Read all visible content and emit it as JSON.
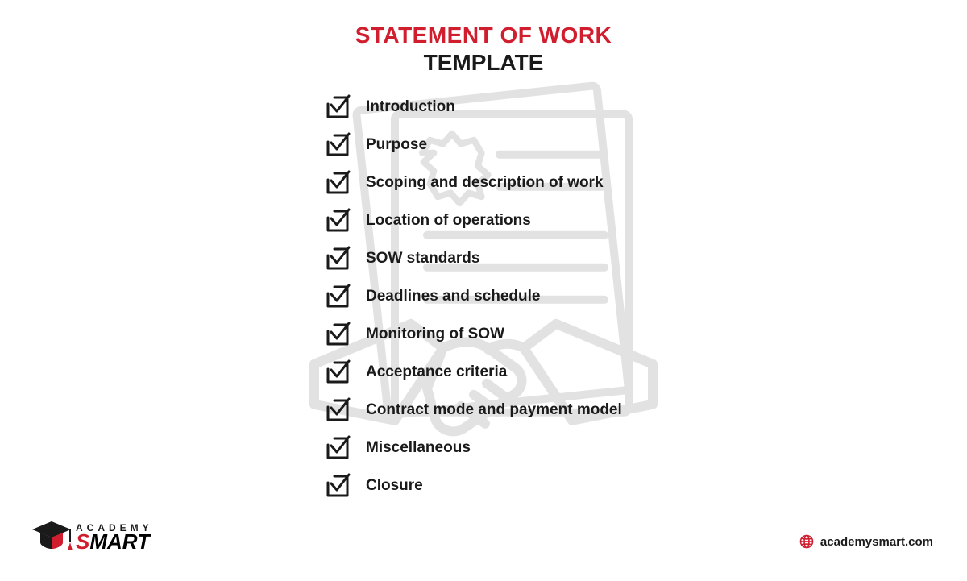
{
  "colors": {
    "accent": "#d01e2f",
    "text": "#1a1a1a",
    "bg_art": "#e2e2e2",
    "background": "#ffffff"
  },
  "title": {
    "line1": "STATEMENT OF WORK",
    "line2": "TEMPLATE",
    "line1_color": "#d01e2f",
    "line1_fontsize": 28,
    "line2_fontsize": 28
  },
  "checklist": {
    "icon_stroke": "#1a1a1a",
    "label_fontsize": 19,
    "items": [
      {
        "label": "Introduction"
      },
      {
        "label": "Purpose"
      },
      {
        "label": "Scoping and description of work"
      },
      {
        "label": "Location of operations"
      },
      {
        "label": "SOW standards"
      },
      {
        "label": "Deadlines and schedule"
      },
      {
        "label": "Monitoring of SOW"
      },
      {
        "label": "Acceptance criteria"
      },
      {
        "label": "Contract mode and payment model"
      },
      {
        "label": "Miscellaneous"
      },
      {
        "label": "Closure"
      }
    ]
  },
  "logo": {
    "top": "ACADEMY",
    "bottom": "SMART",
    "accent": "#d01e2f",
    "cap_color": "#1a1a1a"
  },
  "site": {
    "url": "academysmart.com",
    "icon_color": "#d01e2f"
  }
}
